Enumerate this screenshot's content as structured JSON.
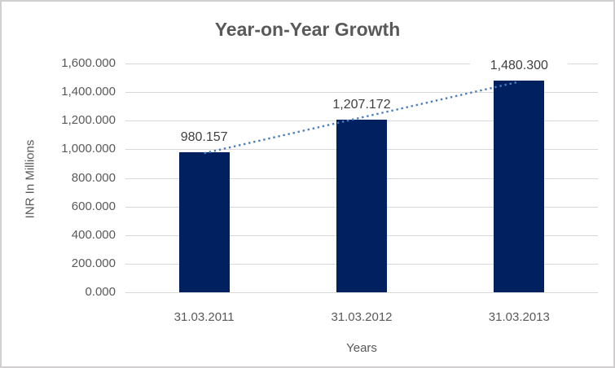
{
  "chart_data": {
    "type": "bar",
    "title": "Year-on-Year Growth",
    "xlabel": "Years",
    "ylabel": "INR In Millions",
    "categories": [
      "31.03.2011",
      "31.03.2012",
      "31.03.2013"
    ],
    "values": [
      980.157,
      1207.172,
      1480.3
    ],
    "data_labels": [
      "980.157",
      "1,207.172",
      "1,480.300"
    ],
    "ylim": [
      0,
      1600
    ],
    "ytick_step": 200,
    "ytick_labels": [
      "0.000",
      "200.000",
      "400.000",
      "600.000",
      "800.000",
      "1,000.000",
      "1,200.000",
      "1,400.000",
      "1,600.000"
    ],
    "grid": true,
    "legend": "none",
    "trendline": {
      "type": "linear",
      "style": "dotted"
    },
    "colors": {
      "bar": "#002060",
      "trendline": "#4a7ec1",
      "gridline": "#d9d9d9",
      "title_text": "#595959",
      "axis_text": "#595959",
      "data_label_text": "#404040",
      "frame_border": "#d1cfcf",
      "background": "#ffffff"
    }
  }
}
